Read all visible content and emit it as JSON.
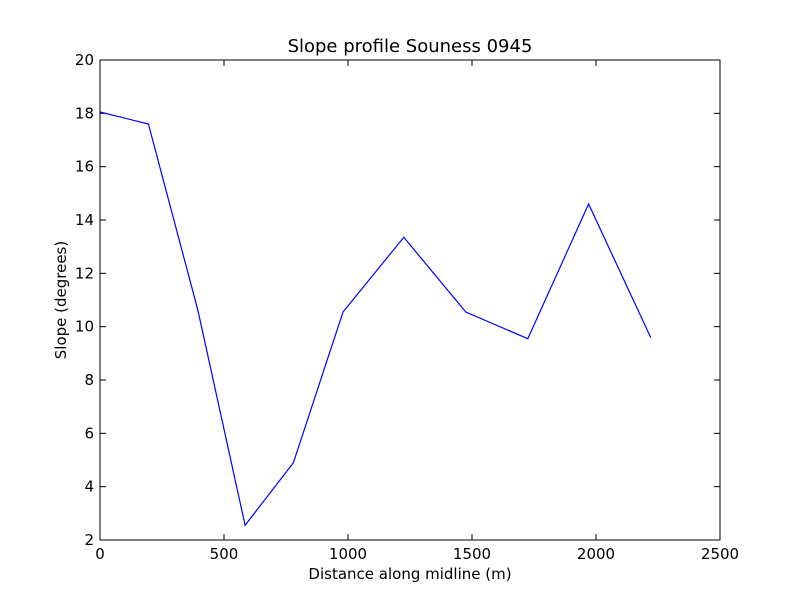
{
  "chart_data": {
    "type": "line",
    "title": "Slope profile Souness 0945",
    "xlabel": "Distance along midline (m)",
    "ylabel": "Slope (degrees)",
    "xlim": [
      0,
      2500
    ],
    "ylim": [
      2,
      20
    ],
    "xticks": [
      0,
      500,
      1000,
      1500,
      2000,
      2500
    ],
    "yticks": [
      2,
      4,
      6,
      8,
      10,
      12,
      14,
      16,
      18,
      20
    ],
    "xtick_labels": [
      "0",
      "500",
      "1000",
      "1500",
      "2000",
      "2500"
    ],
    "ytick_labels": [
      "2",
      "4",
      "6",
      "8",
      "10",
      "12",
      "14",
      "16",
      "18",
      "20"
    ],
    "grid": false,
    "legend": "none",
    "series": [
      {
        "color": "#0000ff",
        "x": [
          0,
          195,
          395,
          585,
          780,
          980,
          1225,
          1475,
          1725,
          1970,
          2220
        ],
        "y": [
          18.05,
          17.6,
          10.6,
          2.55,
          4.9,
          10.55,
          13.35,
          10.55,
          9.55,
          14.6,
          9.6
        ]
      }
    ]
  }
}
